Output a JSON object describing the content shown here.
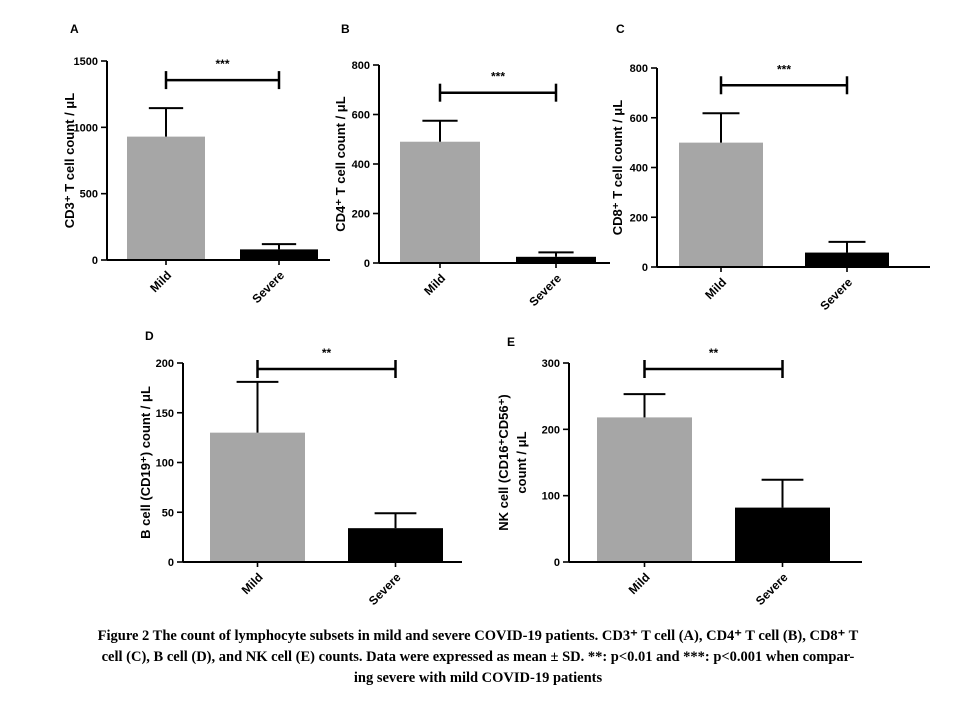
{
  "colors": {
    "mild": "#a6a6a6",
    "severe": "#000000",
    "axis": "#000000"
  },
  "chart_data": [
    {
      "panel": "A",
      "type": "bar",
      "categories": [
        "Mild",
        "Severe"
      ],
      "values": [
        930,
        80
      ],
      "error": [
        215,
        40
      ],
      "ylabel": "CD3⁺ T cell count / μL",
      "ylim": [
        0,
        1500
      ],
      "yticks": [
        0,
        500,
        1000,
        1500
      ],
      "significance": "***"
    },
    {
      "panel": "B",
      "type": "bar",
      "categories": [
        "Mild",
        "Severe"
      ],
      "values": [
        490,
        25
      ],
      "error": [
        85,
        18
      ],
      "ylabel": "CD4⁺ T cell count / μL",
      "ylim": [
        0,
        800
      ],
      "yticks": [
        0,
        200,
        400,
        600,
        800
      ],
      "significance": "***"
    },
    {
      "panel": "C",
      "type": "bar",
      "categories": [
        "Mild",
        "Severe"
      ],
      "values": [
        500,
        58
      ],
      "error": [
        118,
        43
      ],
      "ylabel": "CD8⁺ T cell count / μL",
      "ylim": [
        0,
        800
      ],
      "yticks": [
        0,
        200,
        400,
        600,
        800
      ],
      "significance": "***"
    },
    {
      "panel": "D",
      "type": "bar",
      "categories": [
        "Mild",
        "Severe"
      ],
      "values": [
        130,
        34
      ],
      "error": [
        51,
        15
      ],
      "ylabel": "B cell (CD19⁺) count / μL",
      "ylim": [
        0,
        200
      ],
      "yticks": [
        0,
        50,
        100,
        150,
        200
      ],
      "significance": "**"
    },
    {
      "panel": "E",
      "type": "bar",
      "categories": [
        "Mild",
        "Severe"
      ],
      "values": [
        218,
        82
      ],
      "error": [
        35,
        42
      ],
      "ylabel": [
        "NK cell (CD16⁺CD56⁺)",
        "count / μL"
      ],
      "ylim": [
        0,
        300
      ],
      "yticks": [
        0,
        100,
        200,
        300
      ],
      "significance": "**"
    }
  ],
  "caption": {
    "line1": "Figure 2 The count of lymphocyte subsets in mild and severe COVID-19 patients. CD3⁺ T cell (A), CD4⁺ T cell (B), CD8⁺ T",
    "line2": "cell (C), B cell (D), and NK cell (E) counts. Data were expressed as mean ± SD. **: p<0.01 and ***: p<0.001 when compar-",
    "line3": "ing severe with mild COVID-19 patients"
  }
}
